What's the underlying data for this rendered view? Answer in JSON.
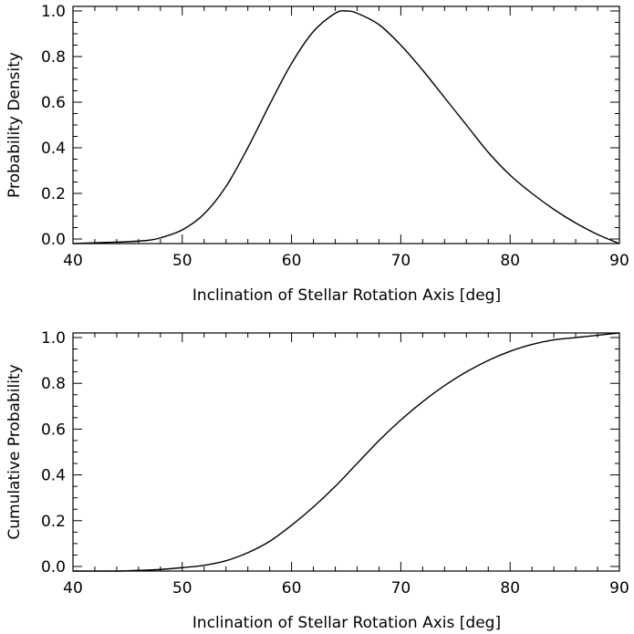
{
  "chart_data": [
    {
      "type": "line",
      "title": "",
      "xlabel": "Inclination of Stellar Rotation Axis [deg]",
      "ylabel": "Probability Density",
      "xlim": [
        40,
        90
      ],
      "ylim": [
        -0.02,
        1.02
      ],
      "xticks": [
        40,
        50,
        60,
        70,
        80,
        90
      ],
      "xtick_labels": [
        "40",
        "50",
        "60",
        "70",
        "80",
        "90"
      ],
      "yticks": [
        0.0,
        0.2,
        0.4,
        0.6,
        0.8,
        1.0
      ],
      "ytick_labels": [
        "0.0",
        "0.2",
        "0.4",
        "0.6",
        "0.8",
        "1.0"
      ],
      "grid": false,
      "series": [
        {
          "name": "probability density",
          "x": [
            40,
            43,
            45,
            47,
            48,
            50,
            52,
            54,
            56,
            58,
            60,
            62,
            64,
            65,
            66,
            68,
            70,
            72,
            74,
            76,
            78,
            80,
            82,
            84,
            86,
            88,
            90
          ],
          "y": [
            -0.02,
            -0.015,
            -0.012,
            -0.005,
            0.005,
            0.04,
            0.11,
            0.23,
            0.4,
            0.59,
            0.77,
            0.91,
            0.99,
            1.0,
            0.99,
            0.94,
            0.85,
            0.74,
            0.62,
            0.5,
            0.38,
            0.28,
            0.2,
            0.13,
            0.07,
            0.02,
            -0.02
          ]
        }
      ]
    },
    {
      "type": "line",
      "title": "",
      "xlabel": "Inclination of Stellar Rotation Axis [deg]",
      "ylabel": "Cumulative Probability",
      "xlim": [
        40,
        90
      ],
      "ylim": [
        -0.02,
        1.02
      ],
      "xticks": [
        40,
        50,
        60,
        70,
        80,
        90
      ],
      "xtick_labels": [
        "40",
        "50",
        "60",
        "70",
        "80",
        "90"
      ],
      "yticks": [
        0.0,
        0.2,
        0.4,
        0.6,
        0.8,
        1.0
      ],
      "ytick_labels": [
        "0.0",
        "0.2",
        "0.4",
        "0.6",
        "0.8",
        "1.0"
      ],
      "grid": false,
      "series": [
        {
          "name": "cumulative probability",
          "x": [
            40,
            44,
            46,
            48,
            50,
            52,
            54,
            56,
            58,
            60,
            62,
            64,
            66,
            68,
            70,
            72,
            74,
            76,
            78,
            80,
            82,
            84,
            86,
            88,
            90
          ],
          "y": [
            -0.02,
            -0.02,
            -0.017,
            -0.013,
            -0.005,
            0.005,
            0.025,
            0.06,
            0.11,
            0.18,
            0.26,
            0.35,
            0.45,
            0.55,
            0.64,
            0.72,
            0.79,
            0.85,
            0.9,
            0.94,
            0.97,
            0.99,
            1.0,
            1.01,
            1.02
          ]
        }
      ]
    }
  ]
}
